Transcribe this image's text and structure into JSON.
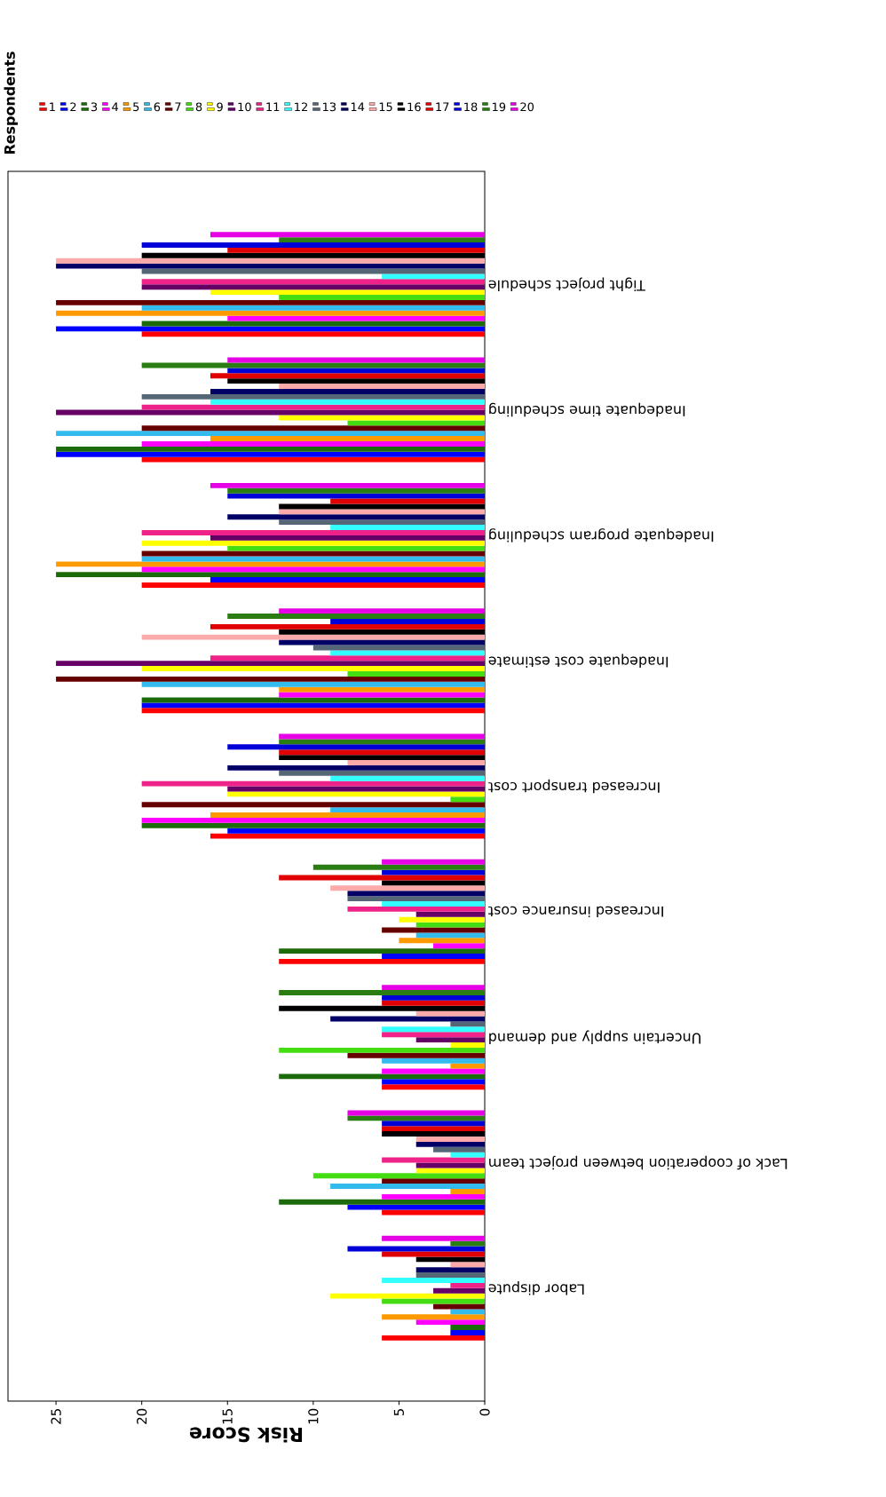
{
  "chart_data": {
    "type": "bar",
    "orientation": "horizontal",
    "xlabel": "Risk Score",
    "legend_title": "Respondents",
    "legend": "top",
    "categories": [
      "Tight project schedule",
      "Inadequate time scheduling",
      "Inadequate program scheduling",
      "Inadequate cost estimate",
      "Increased transport cost",
      "Increased insurance cost",
      "Uncertain supply and demand",
      "Lack of cooperation between project team",
      "Labor dispute"
    ],
    "xlim": [
      27.8,
      0
    ],
    "xticks": [
      0,
      5,
      10,
      15,
      20,
      25
    ],
    "series": [
      {
        "name": "1",
        "color": "#ff0000",
        "values": [
          20,
          20,
          20,
          20,
          16,
          12,
          6,
          6,
          6
        ]
      },
      {
        "name": "2",
        "color": "#0000ff",
        "values": [
          25,
          25,
          16,
          20,
          15,
          6,
          6,
          8,
          2
        ]
      },
      {
        "name": "3",
        "color": "#1b6b0a",
        "values": [
          20,
          25,
          25,
          20,
          20,
          12,
          12,
          12,
          2
        ]
      },
      {
        "name": "4",
        "color": "#ff00ff",
        "values": [
          15,
          20,
          20,
          12,
          20,
          3,
          6,
          6,
          4
        ]
      },
      {
        "name": "5",
        "color": "#ff9900",
        "values": [
          25,
          16,
          25,
          12,
          16,
          5,
          2,
          2,
          6
        ]
      },
      {
        "name": "6",
        "color": "#33bbee",
        "values": [
          20,
          25,
          20,
          20,
          9,
          4,
          6,
          9,
          2
        ]
      },
      {
        "name": "7",
        "color": "#660000",
        "values": [
          25,
          20,
          20,
          25,
          20,
          6,
          8,
          6,
          3
        ]
      },
      {
        "name": "8",
        "color": "#44dd11",
        "values": [
          12,
          8,
          15,
          8,
          2,
          4,
          12,
          10,
          6
        ]
      },
      {
        "name": "9",
        "color": "#ffff00",
        "values": [
          16,
          12,
          20,
          20,
          15,
          5,
          2,
          4,
          9
        ]
      },
      {
        "name": "10",
        "color": "#660066",
        "values": [
          20,
          25,
          16,
          25,
          15,
          4,
          4,
          4,
          3
        ]
      },
      {
        "name": "11",
        "color": "#ee2288",
        "values": [
          20,
          20,
          20,
          16,
          20,
          8,
          6,
          6,
          2
        ]
      },
      {
        "name": "12",
        "color": "#33ffff",
        "values": [
          6,
          16,
          9,
          9,
          9,
          6,
          6,
          2,
          6
        ]
      },
      {
        "name": "13",
        "color": "#556677",
        "values": [
          20,
          20,
          12,
          10,
          12,
          8,
          2,
          3,
          4
        ]
      },
      {
        "name": "14",
        "color": "#000066",
        "values": [
          25,
          16,
          15,
          12,
          15,
          8,
          9,
          4,
          4
        ]
      },
      {
        "name": "15",
        "color": "#ffaaaa",
        "values": [
          25,
          12,
          12,
          20,
          8,
          9,
          4,
          4,
          2
        ]
      },
      {
        "name": "16",
        "color": "#000000",
        "values": [
          20,
          15,
          12,
          12,
          12,
          6,
          12,
          6,
          4
        ]
      },
      {
        "name": "17",
        "color": "#e00000",
        "values": [
          15,
          16,
          9,
          16,
          12,
          12,
          6,
          6,
          6
        ]
      },
      {
        "name": "18",
        "color": "#0000d8",
        "values": [
          20,
          15,
          15,
          9,
          15,
          6,
          6,
          6,
          8
        ]
      },
      {
        "name": "19",
        "color": "#2a7d12",
        "values": [
          12,
          20,
          15,
          15,
          12,
          10,
          12,
          8,
          2
        ]
      },
      {
        "name": "20",
        "color": "#e600e6",
        "values": [
          16,
          15,
          16,
          12,
          12,
          6,
          6,
          8,
          6
        ]
      }
    ]
  }
}
